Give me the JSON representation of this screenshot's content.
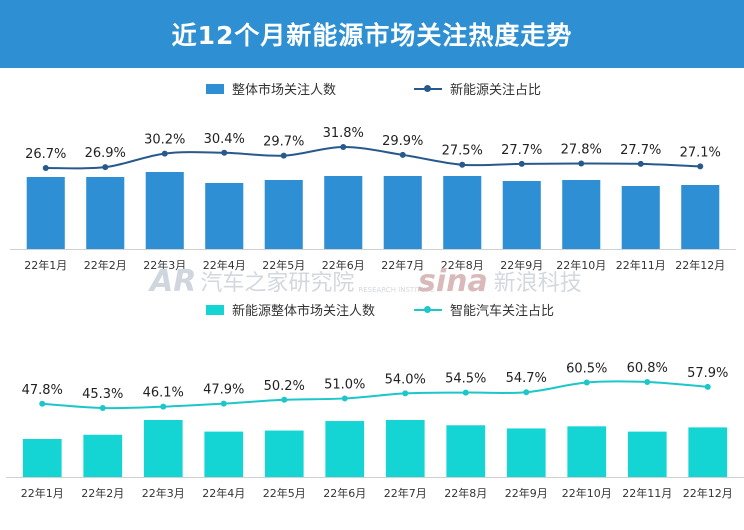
{
  "page": {
    "title": "近12个月新能源市场关注热度走势"
  },
  "watermarks": {
    "left": {
      "mark": "AR",
      "text": "汽车之家研究院",
      "sub": "RESEARCH INSTITUTE"
    },
    "right": {
      "mark": "sina",
      "text": "新浪科技"
    }
  },
  "colors": {
    "banner": "#2f8fd3",
    "chart1_bar": "#2e8fd4",
    "chart1_line": "#27598c",
    "chart2_bar": "#14d4d4",
    "chart2_line": "#1cc6c9"
  },
  "chart_data": [
    {
      "type": "bar",
      "categories": [
        "22年1月",
        "22年2月",
        "22年3月",
        "22年4月",
        "22年5月",
        "22年6月",
        "22年7月",
        "22年8月",
        "22年9月",
        "22年10月",
        "22年11月",
        "22年12月"
      ],
      "series": [
        {
          "name": "整体市场关注人数",
          "type": "bar",
          "values": [
            72,
            72,
            77,
            66,
            69,
            73,
            73,
            73,
            68,
            69,
            63,
            64
          ]
        },
        {
          "name": "新能源关注占比",
          "type": "line",
          "values": [
            26.7,
            26.9,
            30.2,
            30.4,
            29.7,
            31.8,
            29.9,
            27.5,
            27.7,
            27.8,
            27.7,
            27.1
          ],
          "labels": [
            "26.7%",
            "26.9%",
            "30.2%",
            "30.4%",
            "29.7%",
            "31.8%",
            "29.9%",
            "27.5%",
            "27.7%",
            "27.8%",
            "27.7%",
            "27.1%"
          ]
        }
      ],
      "legend_position": "top",
      "grid": false
    },
    {
      "type": "bar",
      "categories": [
        "22年1月",
        "22年2月",
        "22年3月",
        "22年4月",
        "22年5月",
        "22年6月",
        "22年7月",
        "22年8月",
        "22年9月",
        "22年10月",
        "22年11月",
        "22年12月"
      ],
      "series": [
        {
          "name": "新能源整体市场关注人数",
          "type": "bar",
          "values": [
            36,
            40,
            54,
            43,
            44,
            53,
            54,
            49,
            46,
            48,
            43,
            47
          ]
        },
        {
          "name": "智能汽车关注占比",
          "type": "line",
          "values": [
            47.8,
            45.3,
            46.1,
            47.9,
            50.2,
            51.0,
            54.0,
            54.5,
            54.7,
            60.5,
            60.8,
            57.9
          ],
          "labels": [
            "47.8%",
            "45.3%",
            "46.1%",
            "47.9%",
            "50.2%",
            "51.0%",
            "54.0%",
            "54.5%",
            "54.7%",
            "60.5%",
            "60.8%",
            "57.9%"
          ]
        }
      ],
      "legend_position": "top",
      "grid": false
    }
  ]
}
